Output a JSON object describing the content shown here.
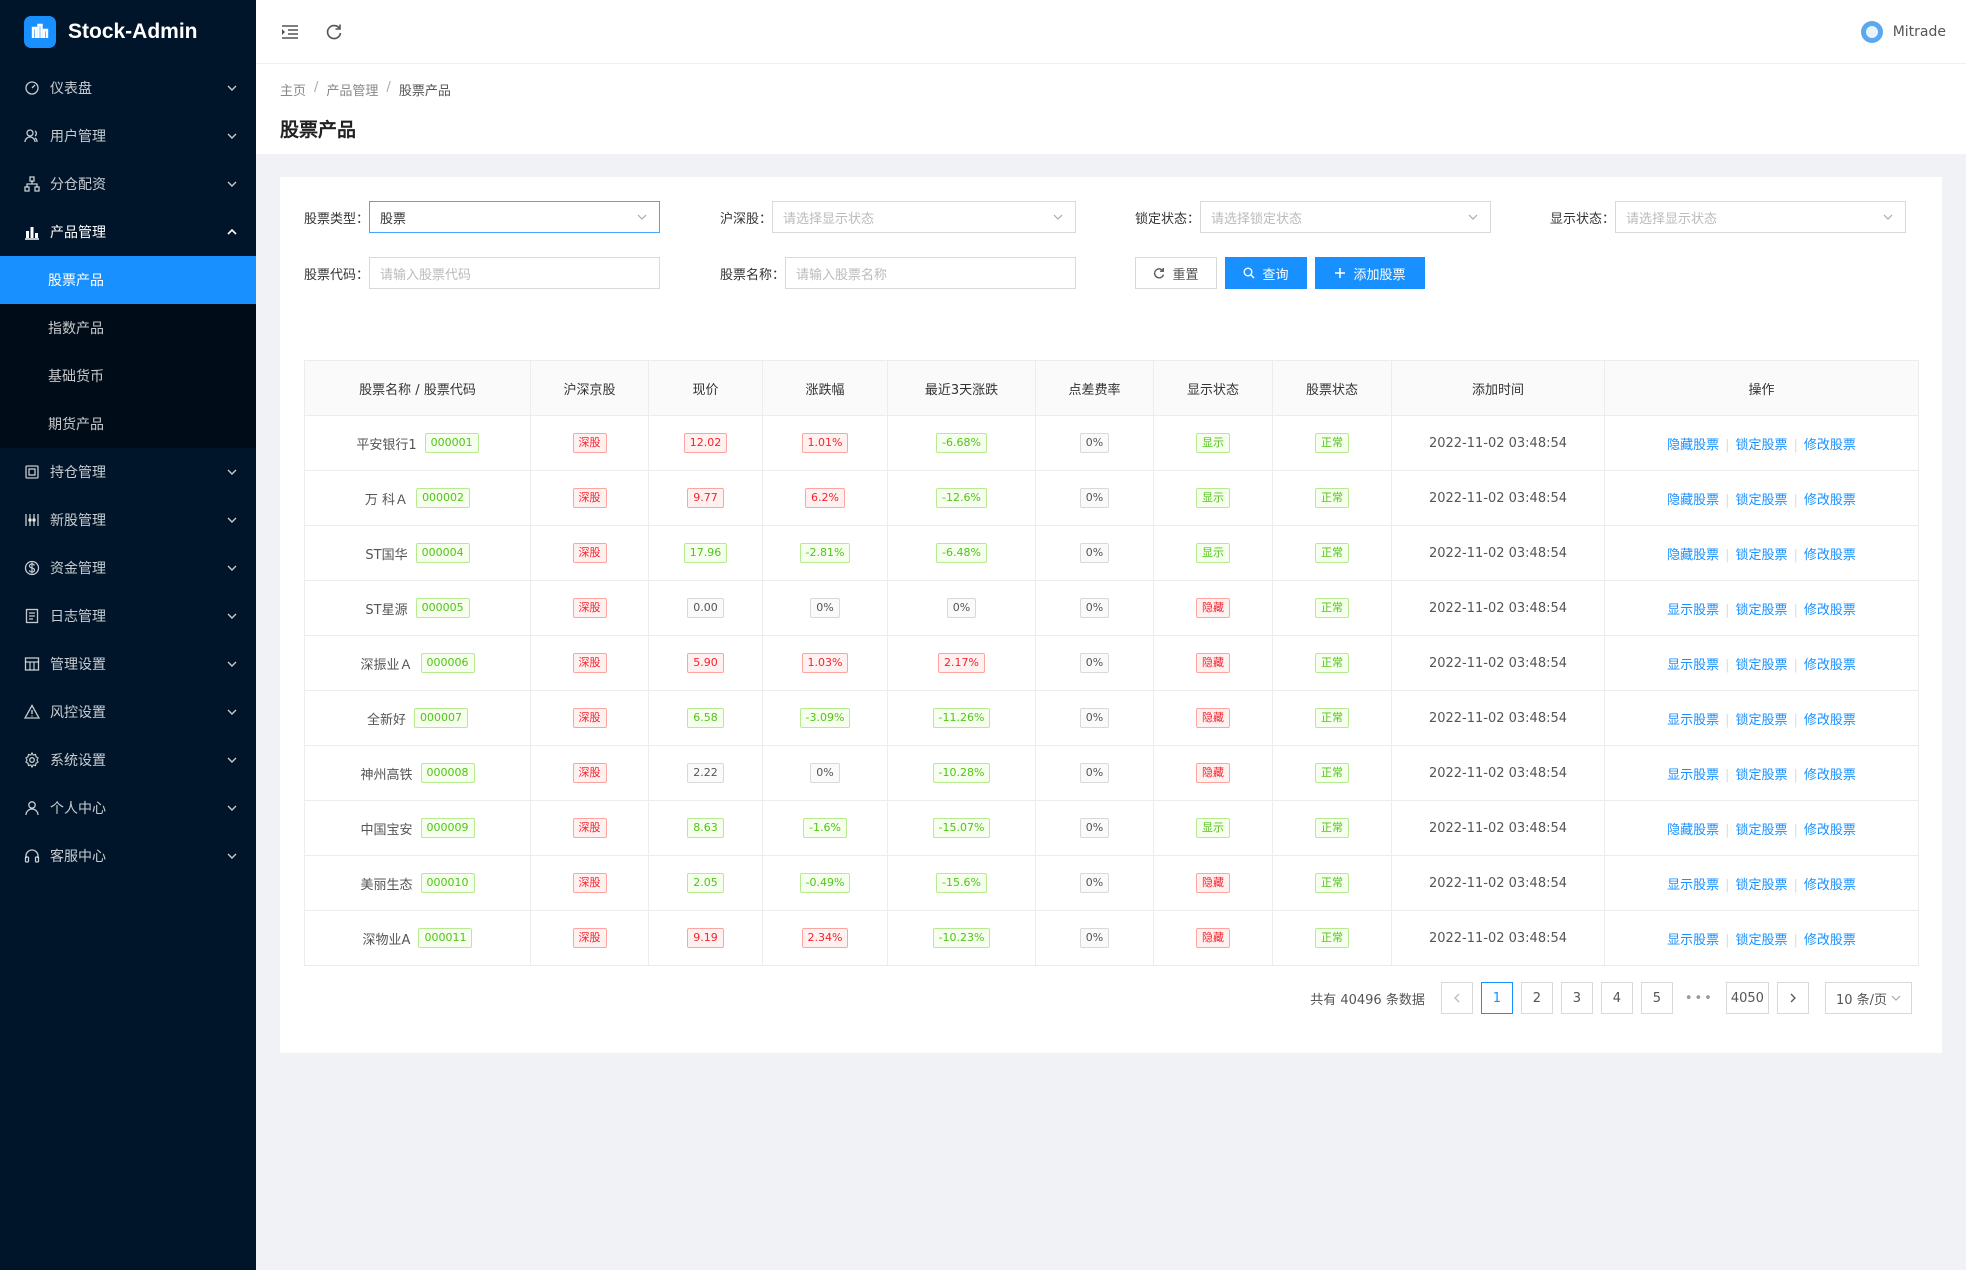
{
  "app": {
    "title": "Stock-Admin"
  },
  "sidebar": {
    "items": [
      {
        "label": "仪表盘",
        "icon": "dashboard-icon"
      },
      {
        "label": "用户管理",
        "icon": "users-icon"
      },
      {
        "label": "分仓配资",
        "icon": "cluster-icon"
      },
      {
        "label": "产品管理",
        "icon": "chart-icon",
        "open": true,
        "children": [
          {
            "label": "股票产品",
            "active": true
          },
          {
            "label": "指数产品"
          },
          {
            "label": "基础货币"
          },
          {
            "label": "期货产品"
          }
        ]
      },
      {
        "label": "持仓管理",
        "icon": "box-icon"
      },
      {
        "label": "新股管理",
        "icon": "sliders-icon"
      },
      {
        "label": "资金管理",
        "icon": "money-icon"
      },
      {
        "label": "日志管理",
        "icon": "log-icon"
      },
      {
        "label": "管理设置",
        "icon": "table-icon"
      },
      {
        "label": "风控设置",
        "icon": "warning-icon"
      },
      {
        "label": "系统设置",
        "icon": "gear-icon"
      },
      {
        "label": "个人中心",
        "icon": "user-icon"
      },
      {
        "label": "客服中心",
        "icon": "headset-icon"
      }
    ]
  },
  "header": {
    "username": "Mitrade"
  },
  "breadcrumb": [
    "主页",
    "产品管理",
    "股票产品"
  ],
  "page": {
    "title": "股票产品"
  },
  "filters": {
    "type_label": "股票类型：",
    "type_value": "股票",
    "hs_label": "沪深股：",
    "hs_placeholder": "请选择显示状态",
    "lock_label": "锁定状态：",
    "lock_placeholder": "请选择锁定状态",
    "show_label": "显示状态：",
    "show_placeholder": "请选择显示状态",
    "code_label": "股票代码：",
    "code_placeholder": "请输入股票代码",
    "name_label": "股票名称：",
    "name_placeholder": "请输入股票名称",
    "reset_label": "重置",
    "query_label": "查询",
    "add_label": "添加股票"
  },
  "table": {
    "headers": [
      "股票名称 / 股票代码",
      "沪深京股",
      "现价",
      "涨跌幅",
      "最近3天涨跌",
      "点差费率",
      "显示状态",
      "股票状态",
      "添加时间",
      "操作"
    ],
    "ops": {
      "hide": "隐藏股票",
      "show": "显示股票",
      "lock": "锁定股票",
      "edit": "修改股票"
    },
    "rows": [
      {
        "name": "平安银行1",
        "code": "000001",
        "market": "深股",
        "price": "12.02",
        "price_color": "red",
        "change": "1.01%",
        "change_color": "red",
        "change3": "-6.68%",
        "change3_color": "green",
        "spread": "0%",
        "display": "显示",
        "display_color": "green",
        "status": "正常",
        "time": "2022-11-02 03:48:54",
        "toggle": "hide"
      },
      {
        "name": "万 科Ａ",
        "code": "000002",
        "market": "深股",
        "price": "9.77",
        "price_color": "red",
        "change": "6.2%",
        "change_color": "red",
        "change3": "-12.6%",
        "change3_color": "green",
        "spread": "0%",
        "display": "显示",
        "display_color": "green",
        "status": "正常",
        "time": "2022-11-02 03:48:54",
        "toggle": "hide"
      },
      {
        "name": "ST国华",
        "code": "000004",
        "market": "深股",
        "price": "17.96",
        "price_color": "green",
        "change": "-2.81%",
        "change_color": "green",
        "change3": "-6.48%",
        "change3_color": "green",
        "spread": "0%",
        "display": "显示",
        "display_color": "green",
        "status": "正常",
        "time": "2022-11-02 03:48:54",
        "toggle": "hide"
      },
      {
        "name": "ST星源",
        "code": "000005",
        "market": "深股",
        "price": "0.00",
        "price_color": "gray",
        "change": "0%",
        "change_color": "gray",
        "change3": "0%",
        "change3_color": "gray",
        "spread": "0%",
        "display": "隐藏",
        "display_color": "red",
        "status": "正常",
        "time": "2022-11-02 03:48:54",
        "toggle": "show"
      },
      {
        "name": "深振业Ａ",
        "code": "000006",
        "market": "深股",
        "price": "5.90",
        "price_color": "red",
        "change": "1.03%",
        "change_color": "red",
        "change3": "2.17%",
        "change3_color": "red",
        "spread": "0%",
        "display": "隐藏",
        "display_color": "red",
        "status": "正常",
        "time": "2022-11-02 03:48:54",
        "toggle": "show"
      },
      {
        "name": "全新好",
        "code": "000007",
        "market": "深股",
        "price": "6.58",
        "price_color": "green",
        "change": "-3.09%",
        "change_color": "green",
        "change3": "-11.26%",
        "change3_color": "green",
        "spread": "0%",
        "display": "隐藏",
        "display_color": "red",
        "status": "正常",
        "time": "2022-11-02 03:48:54",
        "toggle": "show"
      },
      {
        "name": "神州高铁",
        "code": "000008",
        "market": "深股",
        "price": "2.22",
        "price_color": "gray",
        "change": "0%",
        "change_color": "gray",
        "change3": "-10.28%",
        "change3_color": "green",
        "spread": "0%",
        "display": "隐藏",
        "display_color": "red",
        "status": "正常",
        "time": "2022-11-02 03:48:54",
        "toggle": "show"
      },
      {
        "name": "中国宝安",
        "code": "000009",
        "market": "深股",
        "price": "8.63",
        "price_color": "green",
        "change": "-1.6%",
        "change_color": "green",
        "change3": "-15.07%",
        "change3_color": "green",
        "spread": "0%",
        "display": "显示",
        "display_color": "green",
        "status": "正常",
        "time": "2022-11-02 03:48:54",
        "toggle": "hide"
      },
      {
        "name": "美丽生态",
        "code": "000010",
        "market": "深股",
        "price": "2.05",
        "price_color": "green",
        "change": "-0.49%",
        "change_color": "green",
        "change3": "-15.6%",
        "change3_color": "green",
        "spread": "0%",
        "display": "隐藏",
        "display_color": "red",
        "status": "正常",
        "time": "2022-11-02 03:48:54",
        "toggle": "show"
      },
      {
        "name": "深物业A",
        "code": "000011",
        "market": "深股",
        "price": "9.19",
        "price_color": "red",
        "change": "2.34%",
        "change_color": "red",
        "change3": "-10.23%",
        "change3_color": "green",
        "spread": "0%",
        "display": "隐藏",
        "display_color": "red",
        "status": "正常",
        "time": "2022-11-02 03:48:54",
        "toggle": "show"
      }
    ]
  },
  "pagination": {
    "total_text": "共有 40496 条数据",
    "pages": [
      "1",
      "2",
      "3",
      "4",
      "5"
    ],
    "current": "1",
    "ellipsis": "•••",
    "last": "4050",
    "page_size": "10 条/页"
  },
  "colors": {
    "primary": "#1890ff",
    "sidebar_bg": "#001529",
    "up": "#f5222d",
    "down": "#52c41a"
  }
}
